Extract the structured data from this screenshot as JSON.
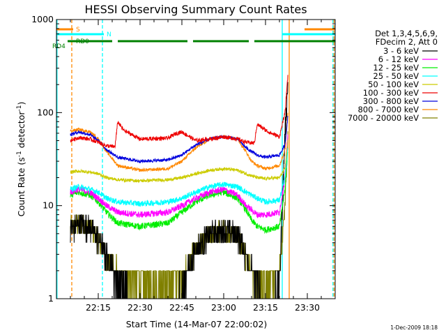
{
  "chart_data": {
    "type": "line",
    "title": "HESSI Observing Summary Count Rates",
    "xlabel": "Start Time (14-Mar-07 22:00:02)",
    "ylabel_main": "Count Rate (s",
    "ylabel_sup1": "-1",
    "ylabel_mid": " detector",
    "ylabel_sup2": "-1",
    "ylabel_end": ")",
    "footer_date": "1-Dec-2009 18:18",
    "y_scale": "log",
    "ylim": [
      1,
      1000
    ],
    "xlim_min": [
      0,
      100
    ],
    "x_ticks": [
      {
        "min": 15,
        "label": "22:15"
      },
      {
        "min": 30,
        "label": "22:30"
      },
      {
        "min": 45,
        "label": "22:45"
      },
      {
        "min": 60,
        "label": "23:00"
      },
      {
        "min": 75,
        "label": "23:15"
      },
      {
        "min": 90,
        "label": "23:30"
      }
    ],
    "y_ticks": [
      {
        "value": 1,
        "label": "1"
      },
      {
        "value": 10,
        "label": "10"
      },
      {
        "value": 100,
        "label": "100"
      },
      {
        "value": 1000,
        "label": "1000"
      }
    ],
    "legend": {
      "position": "right",
      "header": [
        "Det 1,3,4,5,6,9,",
        "FDecim 2, Att 0"
      ],
      "entries": [
        {
          "label": "3 - 6 keV",
          "color": "#000000"
        },
        {
          "label": "6 - 12 keV",
          "color": "#ff00ff"
        },
        {
          "label": "12 - 25 keV",
          "color": "#00ee00"
        },
        {
          "label": "25 - 50 keV",
          "color": "#00ffff"
        },
        {
          "label": "50 - 100 keV",
          "color": "#cccc00"
        },
        {
          "label": "100 - 300 keV",
          "color": "#ee0000"
        },
        {
          "label": "300 - 800 keV",
          "color": "#0000dd"
        },
        {
          "label": "800 - 7000 keV",
          "color": "#ff8800"
        },
        {
          "label": "7000 - 20000 keV",
          "color": "#808000"
        }
      ]
    },
    "flags": [
      {
        "label": "S",
        "color": "#ff8800",
        "segments": [
          [
            0,
            6
          ],
          [
            89,
            100
          ]
        ]
      },
      {
        "label": "N",
        "color": "#00ffff",
        "segments": [
          [
            0,
            17
          ],
          [
            81,
            100
          ]
        ]
      },
      {
        "label": "RD0",
        "color": "#008000",
        "segments": [
          [
            4,
            20
          ],
          [
            22,
            47
          ],
          [
            49,
            69
          ],
          [
            71,
            100
          ]
        ]
      },
      {
        "label": "RD4",
        "color": "#008000",
        "segments": []
      }
    ],
    "vlines": [
      {
        "min": 0.2,
        "color": "#00ffff",
        "style": "solid"
      },
      {
        "min": 5.5,
        "color": "#ff8800",
        "style": "dashed"
      },
      {
        "min": 16.5,
        "color": "#00ffff",
        "style": "dashed"
      },
      {
        "min": 81,
        "color": "#00ffff",
        "style": "solid"
      },
      {
        "min": 83.5,
        "color": "#ff8800",
        "style": "solid"
      },
      {
        "min": 99.2,
        "color": "#00ffff",
        "style": "dashed"
      },
      {
        "min": 99.6,
        "color": "#ff8800",
        "style": "dashed"
      }
    ],
    "series": [
      {
        "name": "3 - 6 keV",
        "color": "#000000",
        "noise": 0.3,
        "x": [
          5,
          8,
          12,
          15,
          18,
          22,
          30,
          40,
          45,
          50,
          55,
          60,
          65,
          68,
          70,
          72,
          75,
          80,
          82,
          83
        ],
        "y": [
          5.5,
          6.5,
          6,
          4.5,
          3,
          1.5,
          1,
          1,
          1.3,
          3.5,
          5,
          5.5,
          5,
          3,
          2,
          1.5,
          1,
          1.5,
          60,
          200
        ]
      },
      {
        "name": "6 - 12 keV",
        "color": "#ff00ff",
        "noise": 0.08,
        "x": [
          5,
          8,
          12,
          15,
          18,
          22,
          30,
          40,
          45,
          50,
          55,
          60,
          65,
          68,
          70,
          72,
          75,
          80,
          82,
          83
        ],
        "y": [
          14,
          15,
          14,
          12,
          10,
          8.5,
          8,
          8.5,
          10,
          12,
          14,
          15,
          13,
          10,
          9,
          8,
          8,
          8.5,
          20,
          60
        ]
      },
      {
        "name": "12 - 25 keV",
        "color": "#00ee00",
        "noise": 0.08,
        "x": [
          5,
          8,
          12,
          15,
          18,
          22,
          30,
          40,
          45,
          50,
          55,
          60,
          65,
          68,
          70,
          72,
          75,
          80,
          82,
          83
        ],
        "y": [
          13,
          14,
          13,
          11,
          8.5,
          6.5,
          6,
          6.5,
          8.5,
          11,
          13,
          14,
          12,
          9,
          7,
          6,
          5.5,
          6,
          15,
          40
        ]
      },
      {
        "name": "25 - 50 keV",
        "color": "#00ffff",
        "noise": 0.07,
        "x": [
          5,
          8,
          12,
          15,
          18,
          22,
          30,
          40,
          45,
          50,
          55,
          60,
          65,
          68,
          70,
          72,
          75,
          80,
          82,
          83
        ],
        "y": [
          15,
          16,
          15,
          14,
          12,
          11,
          10.5,
          11,
          12,
          14,
          16,
          17,
          16,
          14,
          13,
          12,
          11,
          11.5,
          20,
          40
        ]
      },
      {
        "name": "50 - 100 keV",
        "color": "#cccc00",
        "noise": 0.04,
        "x": [
          5,
          8,
          12,
          15,
          18,
          22,
          30,
          40,
          45,
          50,
          55,
          60,
          65,
          68,
          70,
          72,
          75,
          80,
          82,
          83
        ],
        "y": [
          23,
          23.5,
          23,
          22,
          20,
          19,
          18.5,
          19,
          20,
          22,
          24,
          25,
          24,
          22,
          21,
          20,
          19.5,
          20,
          25,
          50
        ]
      },
      {
        "name": "100 - 300 keV",
        "color": "#ee0000",
        "noise": 0.05,
        "x": [
          5,
          8,
          12,
          15,
          18,
          21,
          22,
          24,
          30,
          40,
          43,
          45,
          50,
          55,
          60,
          65,
          68,
          71,
          72,
          76,
          80,
          82,
          83
        ],
        "y": [
          50,
          54,
          52,
          48,
          44,
          43,
          80,
          65,
          52,
          53,
          60,
          62,
          50,
          52,
          55,
          52,
          48,
          47,
          75,
          62,
          55,
          100,
          250
        ]
      },
      {
        "name": "300 - 800 keV",
        "color": "#0000dd",
        "noise": 0.04,
        "x": [
          5,
          8,
          12,
          15,
          18,
          22,
          30,
          40,
          45,
          50,
          55,
          60,
          65,
          68,
          70,
          72,
          75,
          80,
          82,
          83
        ],
        "y": [
          58,
          62,
          58,
          50,
          40,
          33,
          30,
          31,
          35,
          45,
          52,
          55,
          52,
          42,
          38,
          35,
          33,
          35,
          45,
          90
        ]
      },
      {
        "name": "800 - 7000 keV",
        "color": "#ff8800",
        "noise": 0.04,
        "x": [
          5,
          8,
          12,
          15,
          18,
          22,
          30,
          40,
          45,
          50,
          55,
          60,
          65,
          68,
          70,
          72,
          75,
          80,
          82,
          83
        ],
        "y": [
          63,
          66,
          62,
          52,
          38,
          27,
          24,
          25,
          30,
          42,
          52,
          56,
          52,
          38,
          30,
          27,
          25,
          27,
          40,
          100
        ]
      },
      {
        "name": "7000 - 20000 keV",
        "color": "#808000",
        "noise": 0.25,
        "x": [
          5,
          8,
          12,
          15,
          18,
          22,
          30,
          40,
          45,
          50,
          55,
          60,
          65,
          68,
          70,
          72,
          75,
          80,
          82,
          83
        ],
        "y": [
          6,
          6.5,
          6,
          4.5,
          3,
          2,
          1.5,
          1.5,
          1.8,
          3.5,
          5,
          5.5,
          5,
          3,
          2,
          1.5,
          1.5,
          2,
          10,
          60
        ]
      }
    ]
  }
}
